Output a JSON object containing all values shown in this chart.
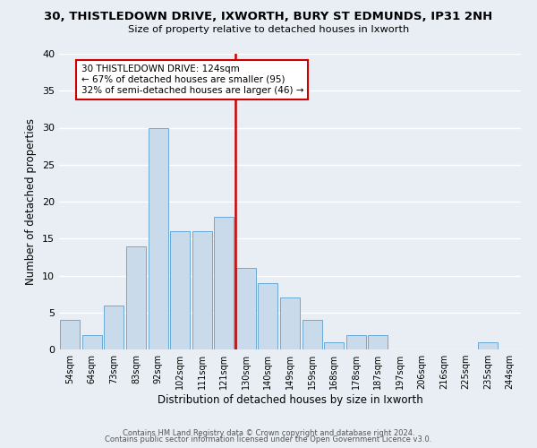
{
  "title": "30, THISTLEDOWN DRIVE, IXWORTH, BURY ST EDMUNDS, IP31 2NH",
  "subtitle": "Size of property relative to detached houses in Ixworth",
  "xlabel": "Distribution of detached houses by size in Ixworth",
  "ylabel": "Number of detached properties",
  "bar_labels": [
    "54sqm",
    "64sqm",
    "73sqm",
    "83sqm",
    "92sqm",
    "102sqm",
    "111sqm",
    "121sqm",
    "130sqm",
    "140sqm",
    "149sqm",
    "159sqm",
    "168sqm",
    "178sqm",
    "187sqm",
    "197sqm",
    "206sqm",
    "216sqm",
    "225sqm",
    "235sqm",
    "244sqm"
  ],
  "bar_values": [
    4,
    2,
    6,
    14,
    30,
    16,
    16,
    18,
    11,
    9,
    7,
    4,
    1,
    2,
    2,
    0,
    0,
    0,
    0,
    1,
    0
  ],
  "bar_color": "#c9daea",
  "bar_edge_color": "#6aaad4",
  "highlight_bar_color": "#b8cfe0",
  "highlight_color": "#cc0000",
  "vline_bar_index": 7,
  "ylim": [
    0,
    40
  ],
  "yticks": [
    0,
    5,
    10,
    15,
    20,
    25,
    30,
    35,
    40
  ],
  "annotation_title": "30 THISTLEDOWN DRIVE: 124sqm",
  "annotation_line1": "← 67% of detached houses are smaller (95)",
  "annotation_line2": "32% of semi-detached houses are larger (46) →",
  "annotation_box_color": "#ffffff",
  "annotation_box_edge": "#cc0000",
  "footer1": "Contains HM Land Registry data © Crown copyright and database right 2024.",
  "footer2": "Contains public sector information licensed under the Open Government Licence v3.0.",
  "background_color": "#e8eef4",
  "grid_color": "#ffffff"
}
